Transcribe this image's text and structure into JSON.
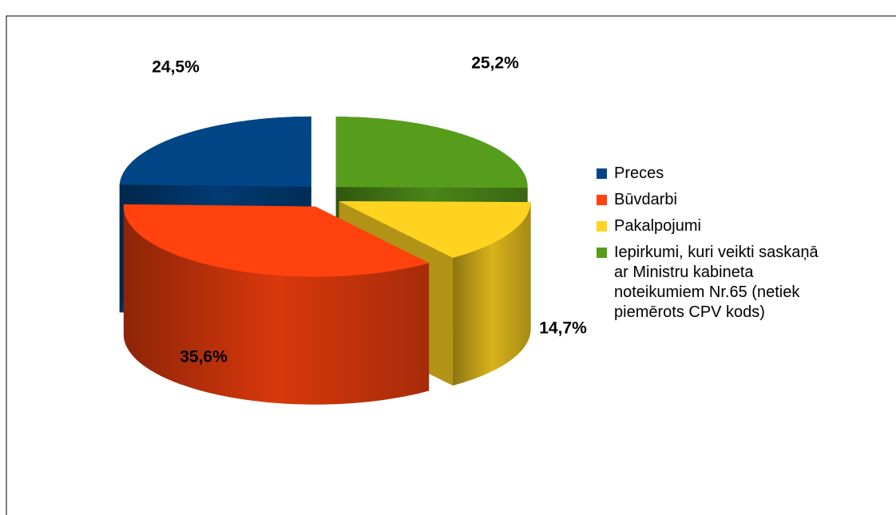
{
  "chart_data": {
    "type": "pie3d",
    "categories": [
      "Preces",
      "Būvdarbi",
      "Pakalpojumi",
      "Iepirkumi, kuri veikti saskaņā ar Ministru kabineta noteikumiem Nr.65 (netiek piemērots CPV kods)"
    ],
    "values": [
      24.5,
      35.6,
      14.7,
      25.2
    ],
    "value_labels": [
      "24,5%",
      "35,6%",
      "14,7%",
      "25,2%"
    ],
    "colors": [
      "#004586",
      "#ff420e",
      "#ffd320",
      "#579d1c"
    ],
    "legend": "right"
  }
}
